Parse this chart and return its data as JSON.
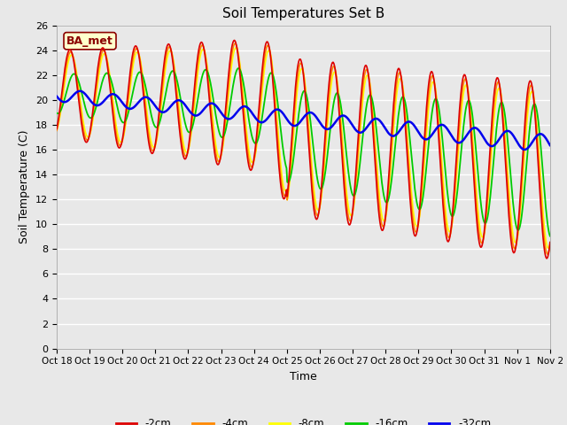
{
  "title": "Soil Temperatures Set B",
  "xlabel": "Time",
  "ylabel": "Soil Temperature (C)",
  "annotation": "BA_met",
  "ylim": [
    0,
    26
  ],
  "yticks": [
    0,
    2,
    4,
    6,
    8,
    10,
    12,
    14,
    16,
    18,
    20,
    22,
    24,
    26
  ],
  "xtick_labels": [
    "Oct 18",
    "Oct 19",
    "Oct 20",
    "Oct 21",
    "Oct 22",
    "Oct 23",
    "Oct 24",
    "Oct 25",
    "Oct 26",
    "Oct 27",
    "Oct 28",
    "Oct 29",
    "Oct 30",
    "Oct 31",
    "Nov 1",
    "Nov 2"
  ],
  "colors": {
    "-2cm": "#dd0000",
    "-4cm": "#ff8800",
    "-8cm": "#ffff00",
    "-16cm": "#00cc00",
    "-32cm": "#0000ee"
  },
  "background_color": "#e8e8e8",
  "grid_color": "#ffffff",
  "title_fontsize": 11,
  "axis_label_fontsize": 9,
  "tick_fontsize": 8
}
